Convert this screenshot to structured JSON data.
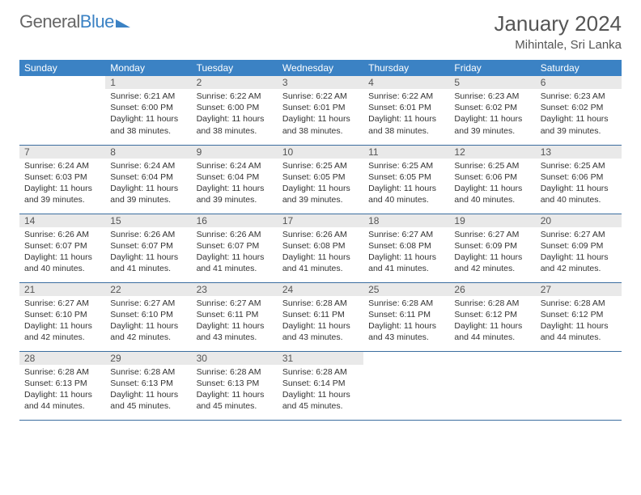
{
  "logo": {
    "part1": "General",
    "part2": "Blue"
  },
  "header": {
    "title": "January 2024",
    "location": "Mihintale, Sri Lanka"
  },
  "colors": {
    "header_bg": "#3b82c4",
    "header_text": "#ffffff",
    "daynum_bg": "#e9e9e9",
    "text": "#333333",
    "rule": "#3b6ea0"
  },
  "weekdays": [
    "Sunday",
    "Monday",
    "Tuesday",
    "Wednesday",
    "Thursday",
    "Friday",
    "Saturday"
  ],
  "weeks": [
    [
      {
        "n": "",
        "sr": "",
        "ss": "",
        "dl": ""
      },
      {
        "n": "1",
        "sr": "Sunrise: 6:21 AM",
        "ss": "Sunset: 6:00 PM",
        "dl": "Daylight: 11 hours and 38 minutes."
      },
      {
        "n": "2",
        "sr": "Sunrise: 6:22 AM",
        "ss": "Sunset: 6:00 PM",
        "dl": "Daylight: 11 hours and 38 minutes."
      },
      {
        "n": "3",
        "sr": "Sunrise: 6:22 AM",
        "ss": "Sunset: 6:01 PM",
        "dl": "Daylight: 11 hours and 38 minutes."
      },
      {
        "n": "4",
        "sr": "Sunrise: 6:22 AM",
        "ss": "Sunset: 6:01 PM",
        "dl": "Daylight: 11 hours and 38 minutes."
      },
      {
        "n": "5",
        "sr": "Sunrise: 6:23 AM",
        "ss": "Sunset: 6:02 PM",
        "dl": "Daylight: 11 hours and 39 minutes."
      },
      {
        "n": "6",
        "sr": "Sunrise: 6:23 AM",
        "ss": "Sunset: 6:02 PM",
        "dl": "Daylight: 11 hours and 39 minutes."
      }
    ],
    [
      {
        "n": "7",
        "sr": "Sunrise: 6:24 AM",
        "ss": "Sunset: 6:03 PM",
        "dl": "Daylight: 11 hours and 39 minutes."
      },
      {
        "n": "8",
        "sr": "Sunrise: 6:24 AM",
        "ss": "Sunset: 6:04 PM",
        "dl": "Daylight: 11 hours and 39 minutes."
      },
      {
        "n": "9",
        "sr": "Sunrise: 6:24 AM",
        "ss": "Sunset: 6:04 PM",
        "dl": "Daylight: 11 hours and 39 minutes."
      },
      {
        "n": "10",
        "sr": "Sunrise: 6:25 AM",
        "ss": "Sunset: 6:05 PM",
        "dl": "Daylight: 11 hours and 39 minutes."
      },
      {
        "n": "11",
        "sr": "Sunrise: 6:25 AM",
        "ss": "Sunset: 6:05 PM",
        "dl": "Daylight: 11 hours and 40 minutes."
      },
      {
        "n": "12",
        "sr": "Sunrise: 6:25 AM",
        "ss": "Sunset: 6:06 PM",
        "dl": "Daylight: 11 hours and 40 minutes."
      },
      {
        "n": "13",
        "sr": "Sunrise: 6:25 AM",
        "ss": "Sunset: 6:06 PM",
        "dl": "Daylight: 11 hours and 40 minutes."
      }
    ],
    [
      {
        "n": "14",
        "sr": "Sunrise: 6:26 AM",
        "ss": "Sunset: 6:07 PM",
        "dl": "Daylight: 11 hours and 40 minutes."
      },
      {
        "n": "15",
        "sr": "Sunrise: 6:26 AM",
        "ss": "Sunset: 6:07 PM",
        "dl": "Daylight: 11 hours and 41 minutes."
      },
      {
        "n": "16",
        "sr": "Sunrise: 6:26 AM",
        "ss": "Sunset: 6:07 PM",
        "dl": "Daylight: 11 hours and 41 minutes."
      },
      {
        "n": "17",
        "sr": "Sunrise: 6:26 AM",
        "ss": "Sunset: 6:08 PM",
        "dl": "Daylight: 11 hours and 41 minutes."
      },
      {
        "n": "18",
        "sr": "Sunrise: 6:27 AM",
        "ss": "Sunset: 6:08 PM",
        "dl": "Daylight: 11 hours and 41 minutes."
      },
      {
        "n": "19",
        "sr": "Sunrise: 6:27 AM",
        "ss": "Sunset: 6:09 PM",
        "dl": "Daylight: 11 hours and 42 minutes."
      },
      {
        "n": "20",
        "sr": "Sunrise: 6:27 AM",
        "ss": "Sunset: 6:09 PM",
        "dl": "Daylight: 11 hours and 42 minutes."
      }
    ],
    [
      {
        "n": "21",
        "sr": "Sunrise: 6:27 AM",
        "ss": "Sunset: 6:10 PM",
        "dl": "Daylight: 11 hours and 42 minutes."
      },
      {
        "n": "22",
        "sr": "Sunrise: 6:27 AM",
        "ss": "Sunset: 6:10 PM",
        "dl": "Daylight: 11 hours and 42 minutes."
      },
      {
        "n": "23",
        "sr": "Sunrise: 6:27 AM",
        "ss": "Sunset: 6:11 PM",
        "dl": "Daylight: 11 hours and 43 minutes."
      },
      {
        "n": "24",
        "sr": "Sunrise: 6:28 AM",
        "ss": "Sunset: 6:11 PM",
        "dl": "Daylight: 11 hours and 43 minutes."
      },
      {
        "n": "25",
        "sr": "Sunrise: 6:28 AM",
        "ss": "Sunset: 6:11 PM",
        "dl": "Daylight: 11 hours and 43 minutes."
      },
      {
        "n": "26",
        "sr": "Sunrise: 6:28 AM",
        "ss": "Sunset: 6:12 PM",
        "dl": "Daylight: 11 hours and 44 minutes."
      },
      {
        "n": "27",
        "sr": "Sunrise: 6:28 AM",
        "ss": "Sunset: 6:12 PM",
        "dl": "Daylight: 11 hours and 44 minutes."
      }
    ],
    [
      {
        "n": "28",
        "sr": "Sunrise: 6:28 AM",
        "ss": "Sunset: 6:13 PM",
        "dl": "Daylight: 11 hours and 44 minutes."
      },
      {
        "n": "29",
        "sr": "Sunrise: 6:28 AM",
        "ss": "Sunset: 6:13 PM",
        "dl": "Daylight: 11 hours and 45 minutes."
      },
      {
        "n": "30",
        "sr": "Sunrise: 6:28 AM",
        "ss": "Sunset: 6:13 PM",
        "dl": "Daylight: 11 hours and 45 minutes."
      },
      {
        "n": "31",
        "sr": "Sunrise: 6:28 AM",
        "ss": "Sunset: 6:14 PM",
        "dl": "Daylight: 11 hours and 45 minutes."
      },
      {
        "n": "",
        "sr": "",
        "ss": "",
        "dl": ""
      },
      {
        "n": "",
        "sr": "",
        "ss": "",
        "dl": ""
      },
      {
        "n": "",
        "sr": "",
        "ss": "",
        "dl": ""
      }
    ]
  ]
}
